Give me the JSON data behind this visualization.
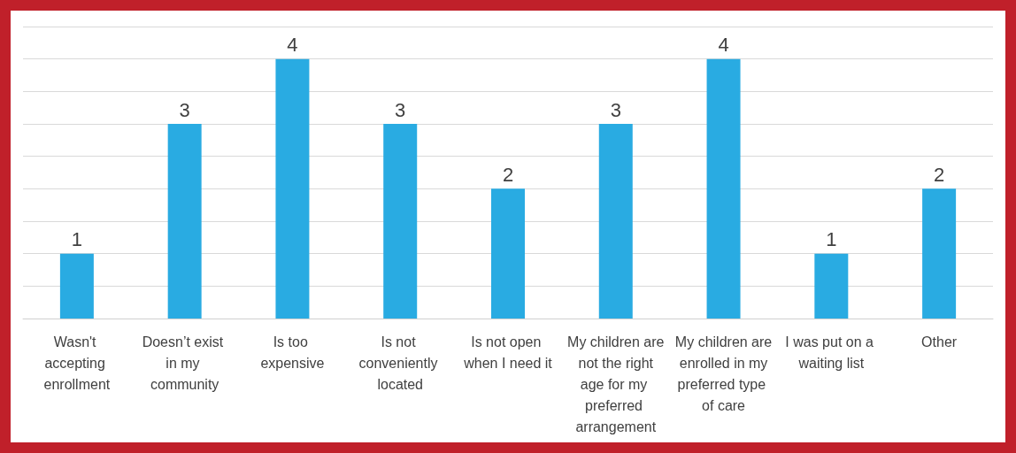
{
  "chart_data": {
    "type": "bar",
    "categories": [
      "Wasn't accepting enrollment",
      "Doesn’t exist in my community",
      "Is too expensive",
      "Is not conveniently located",
      "Is not open when I need it",
      "My children are not the right age for my preferred arrangement",
      "My children are enrolled in my preferred type of care",
      "I was put on a waiting list",
      "Other"
    ],
    "values": [
      1,
      3,
      4,
      3,
      2,
      3,
      4,
      1,
      2
    ],
    "color": "#29abe2",
    "ylim": [
      0,
      4.5
    ],
    "yticks": [
      {
        "value": 0,
        "label": null
      },
      {
        "value": 0.5,
        "label": null
      },
      {
        "value": 1,
        "label": null
      },
      {
        "value": 1.5,
        "label": null
      },
      {
        "value": 2,
        "label": null
      },
      {
        "value": 2.5,
        "label": null
      },
      {
        "value": 3,
        "label": null
      },
      {
        "value": 3.5,
        "label": null
      },
      {
        "value": 4,
        "label": null
      },
      {
        "value": 4.5,
        "label": null
      }
    ],
    "tick_labels": "x",
    "grid": "y",
    "data_labels": true
  }
}
